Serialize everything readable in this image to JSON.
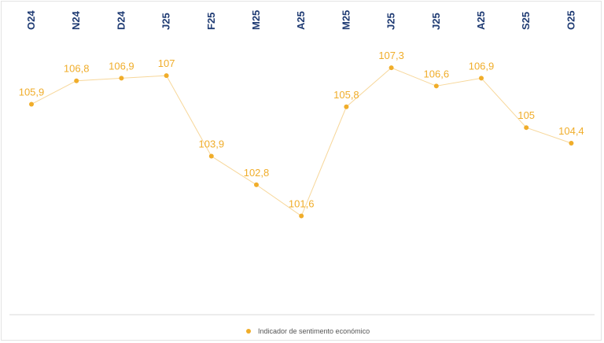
{
  "chart_data": {
    "type": "line",
    "title": "",
    "xlabel": "",
    "ylabel": "",
    "categories": [
      "O24",
      "N24",
      "D24",
      "J25",
      "F25",
      "M25",
      "A25",
      "M25",
      "J25",
      "J25",
      "A25",
      "S25",
      "O25"
    ],
    "series": [
      {
        "name": "Indicador de sentimento económico",
        "values": [
          105.9,
          106.8,
          106.9,
          107,
          103.9,
          102.8,
          101.6,
          105.8,
          107.3,
          106.6,
          106.9,
          105,
          104.4
        ],
        "labels": [
          "105,9",
          "106,8",
          "106,9",
          "107",
          "103,9",
          "102,8",
          "101,6",
          "105,8",
          "107,3",
          "106,6",
          "106,9",
          "105",
          "104,4"
        ]
      }
    ],
    "ylim": [
      98.5,
      109
    ],
    "grid": false,
    "legend_position": "bottom",
    "x_axis_position": "top",
    "colors": {
      "series": "#f0ad2a",
      "line": "#f7d79a",
      "tick_text": "#1f3b73"
    }
  }
}
